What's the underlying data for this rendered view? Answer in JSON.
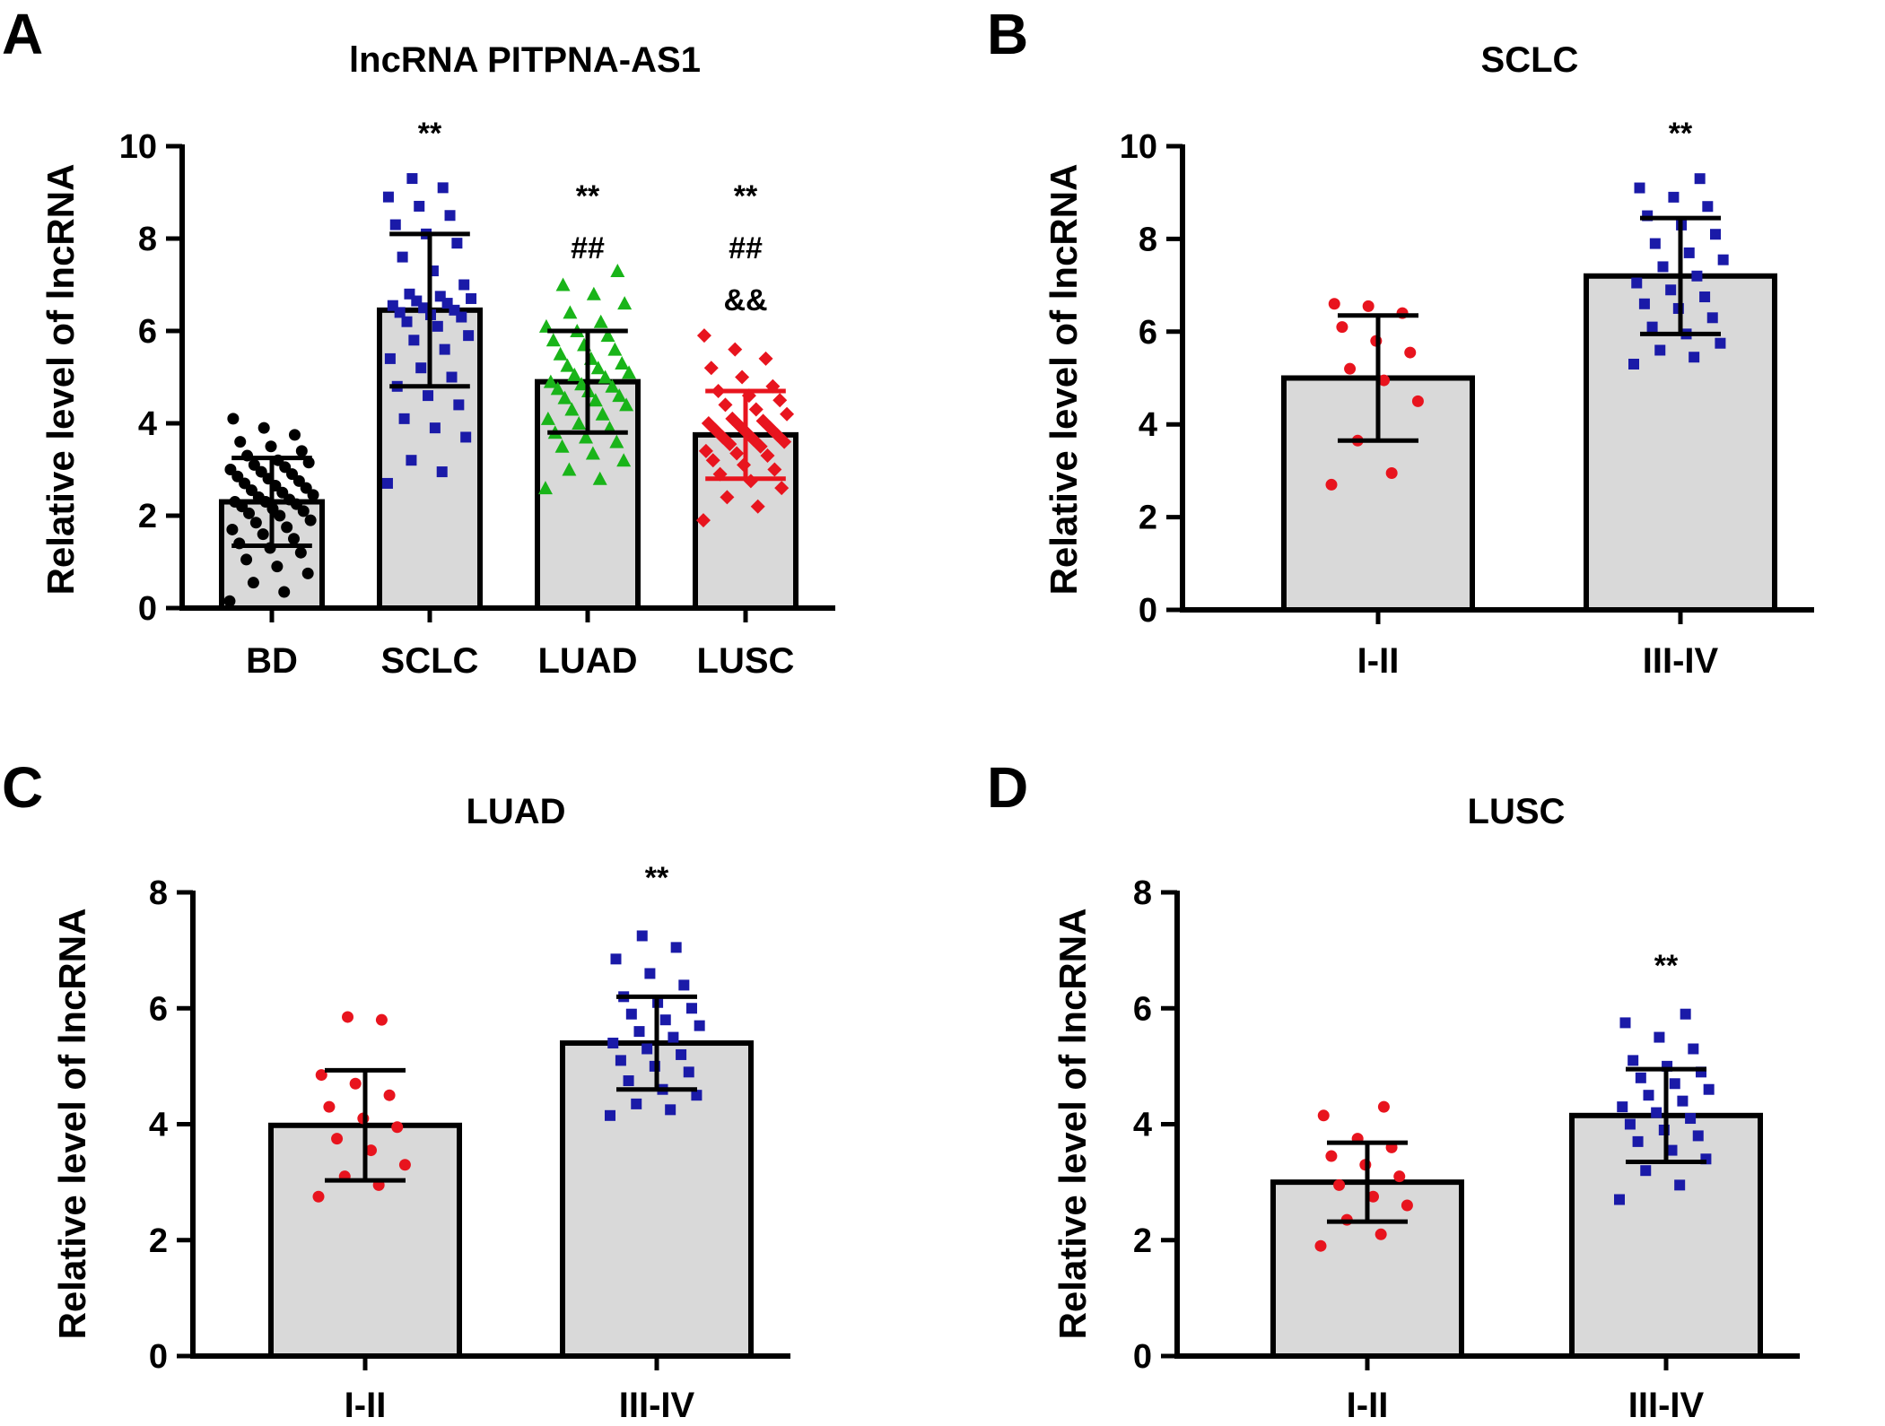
{
  "figure": {
    "background": "#ffffff",
    "bar_fill": "#d9d9d9",
    "axis_color": "#000000"
  },
  "chart_data": [
    {
      "panel": "A",
      "type": "bar",
      "title": "lncRNA PITPNA-AS1",
      "xlabel": "",
      "ylabel": "Relative level of lncRNA",
      "ylim": [
        0,
        10
      ],
      "yticks": [
        "0",
        "2",
        "4",
        "6",
        "8",
        "10"
      ],
      "categories": [
        "BD",
        "SCLC",
        "LUAD",
        "LUSC"
      ],
      "values": [
        2.3,
        6.45,
        4.9,
        3.75
      ],
      "sd": [
        0.95,
        1.65,
        1.1,
        0.95
      ],
      "point_colors": [
        "#000000",
        "#1a1aa8",
        "#19b419",
        "#e8141e"
      ],
      "error_colors": [
        "#000000",
        "#000000",
        "#000000",
        "#e8141e"
      ],
      "markers": [
        "circle",
        "square",
        "triangle",
        "diamond"
      ],
      "annotations": [
        [],
        [
          "**"
        ],
        [
          "**",
          "##"
        ],
        [
          "**",
          "##",
          "&&"
        ]
      ],
      "points": [
        [
          0.15,
          0.35,
          0.55,
          0.75,
          0.9,
          1.05,
          1.2,
          1.3,
          1.4,
          1.5,
          1.6,
          1.7,
          1.75,
          1.85,
          1.9,
          2.0,
          2.05,
          2.1,
          2.15,
          2.2,
          2.25,
          2.3,
          2.3,
          2.35,
          2.4,
          2.45,
          2.5,
          2.55,
          2.6,
          2.65,
          2.7,
          2.75,
          2.8,
          2.85,
          2.9,
          2.95,
          3.0,
          3.05,
          3.1,
          3.15,
          3.2,
          3.3,
          3.4,
          3.5,
          3.6,
          3.75,
          3.9,
          4.1
        ],
        [
          2.7,
          2.95,
          3.2,
          3.7,
          3.9,
          4.1,
          4.4,
          4.6,
          4.8,
          5.0,
          5.2,
          5.4,
          5.6,
          5.8,
          5.9,
          6.1,
          6.2,
          6.3,
          6.35,
          6.4,
          6.45,
          6.5,
          6.55,
          6.6,
          6.65,
          6.7,
          6.75,
          6.8,
          7.0,
          7.3,
          7.6,
          7.9,
          8.1,
          8.3,
          8.5,
          8.7,
          8.9,
          9.1,
          9.3
        ],
        [
          2.6,
          2.8,
          3.0,
          3.2,
          3.35,
          3.5,
          3.6,
          3.7,
          3.8,
          3.9,
          4.0,
          4.1,
          4.2,
          4.3,
          4.4,
          4.5,
          4.55,
          4.6,
          4.7,
          4.75,
          4.8,
          4.85,
          4.9,
          5.0,
          5.05,
          5.1,
          5.2,
          5.25,
          5.3,
          5.4,
          5.5,
          5.6,
          5.7,
          5.8,
          5.9,
          6.0,
          6.1,
          6.2,
          6.4,
          6.6,
          6.8,
          7.0,
          7.3
        ],
        [
          1.9,
          2.2,
          2.4,
          2.6,
          2.75,
          2.9,
          3.0,
          3.1,
          3.2,
          3.3,
          3.35,
          3.4,
          3.5,
          3.55,
          3.6,
          3.65,
          3.7,
          3.75,
          3.8,
          3.85,
          3.9,
          3.95,
          4.0,
          4.05,
          4.1,
          4.2,
          4.3,
          4.4,
          4.5,
          4.6,
          4.7,
          4.8,
          5.0,
          5.2,
          5.4,
          5.6,
          5.9
        ]
      ]
    },
    {
      "panel": "B",
      "type": "bar",
      "title": "SCLC",
      "xlabel": "",
      "ylabel": "Relative level of lncRNA",
      "ylim": [
        0,
        10
      ],
      "yticks": [
        "0",
        "2",
        "4",
        "6",
        "8",
        "10"
      ],
      "categories": [
        "I-II",
        "III-IV"
      ],
      "values": [
        5.0,
        7.2
      ],
      "sd": [
        1.35,
        1.25
      ],
      "point_colors": [
        "#e8141e",
        "#1a1aa8"
      ],
      "error_colors": [
        "#000000",
        "#000000"
      ],
      "markers": [
        "circle",
        "square"
      ],
      "annotations": [
        [],
        [
          "**"
        ]
      ],
      "points": [
        [
          2.7,
          2.95,
          3.65,
          4.5,
          4.95,
          5.2,
          5.55,
          5.8,
          6.1,
          6.4,
          6.55,
          6.6
        ],
        [
          5.3,
          5.45,
          5.6,
          5.75,
          5.95,
          6.1,
          6.3,
          6.5,
          6.6,
          6.75,
          6.9,
          7.05,
          7.2,
          7.4,
          7.55,
          7.7,
          7.9,
          8.1,
          8.3,
          8.5,
          8.7,
          8.9,
          9.1,
          9.3
        ]
      ]
    },
    {
      "panel": "C",
      "type": "bar",
      "title": "LUAD",
      "xlabel": "",
      "ylabel": "Relative level of lncRNA",
      "ylim": [
        0,
        8
      ],
      "yticks": [
        "0",
        "2",
        "4",
        "6",
        "8"
      ],
      "categories": [
        "I-II",
        "III-IV"
      ],
      "values": [
        3.98,
        5.4
      ],
      "sd": [
        0.95,
        0.8
      ],
      "point_colors": [
        "#e8141e",
        "#1a1aa8"
      ],
      "error_colors": [
        "#000000",
        "#000000"
      ],
      "markers": [
        "circle",
        "square"
      ],
      "annotations": [
        [],
        [
          "**"
        ]
      ],
      "points": [
        [
          2.75,
          2.95,
          3.1,
          3.3,
          3.55,
          3.75,
          3.95,
          4.1,
          4.3,
          4.5,
          4.7,
          4.85,
          5.8,
          5.85
        ],
        [
          4.15,
          4.25,
          4.35,
          4.5,
          4.6,
          4.75,
          4.9,
          5.0,
          5.1,
          5.2,
          5.3,
          5.4,
          5.5,
          5.6,
          5.7,
          5.8,
          5.9,
          6.0,
          6.1,
          6.2,
          6.4,
          6.6,
          6.85,
          7.05,
          7.25
        ]
      ]
    },
    {
      "panel": "D",
      "type": "bar",
      "title": "LUSC",
      "xlabel": "",
      "ylabel": "Relative level of lncRNA",
      "ylim": [
        0,
        8
      ],
      "yticks": [
        "0",
        "2",
        "4",
        "6",
        "8"
      ],
      "categories": [
        "I-II",
        "III-IV"
      ],
      "values": [
        3.0,
        4.15
      ],
      "sd": [
        0.68,
        0.8
      ],
      "point_colors": [
        "#e8141e",
        "#1a1aa8"
      ],
      "error_colors": [
        "#000000",
        "#000000"
      ],
      "markers": [
        "circle",
        "square"
      ],
      "annotations": [
        [],
        [
          "**"
        ]
      ],
      "points": [
        [
          1.9,
          2.1,
          2.35,
          2.6,
          2.75,
          2.95,
          3.1,
          3.3,
          3.45,
          3.6,
          3.75,
          4.15,
          4.3
        ],
        [
          2.7,
          2.95,
          3.2,
          3.4,
          3.55,
          3.7,
          3.8,
          3.9,
          4.0,
          4.1,
          4.2,
          4.3,
          4.4,
          4.5,
          4.6,
          4.7,
          4.8,
          4.9,
          5.0,
          5.1,
          5.3,
          5.5,
          5.75,
          5.9
        ]
      ]
    }
  ]
}
